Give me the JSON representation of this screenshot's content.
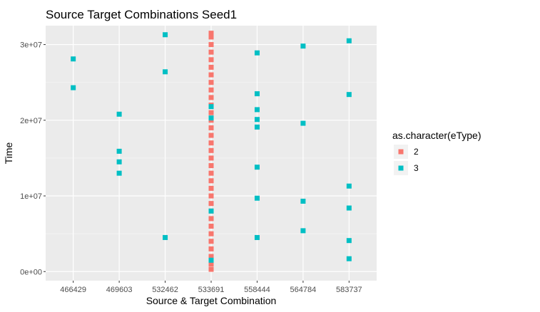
{
  "chart_data": {
    "type": "scatter",
    "title": "Source Target Combinations Seed1",
    "xlabel": "Source & Target Combination",
    "ylabel": "Time",
    "categories": [
      "466429",
      "469603",
      "532462",
      "533691",
      "558444",
      "564784",
      "583737"
    ],
    "ylim": [
      -1200000,
      32500000
    ],
    "y_ticks": [
      {
        "value": 0,
        "label": "0e+00"
      },
      {
        "value": 10000000,
        "label": "1e+07"
      },
      {
        "value": 20000000,
        "label": "2e+07"
      },
      {
        "value": 30000000,
        "label": "3e+07"
      }
    ],
    "grid": true,
    "legend": {
      "title": "as.character(eType)",
      "placement": "right"
    },
    "series": [
      {
        "name": "2",
        "color": "#F8766D",
        "points": [
          {
            "x": "533691",
            "y": 300000
          },
          {
            "x": "533691",
            "y": 1000000
          },
          {
            "x": "533691",
            "y": 2000000
          },
          {
            "x": "533691",
            "y": 3000000
          },
          {
            "x": "533691",
            "y": 4000000
          },
          {
            "x": "533691",
            "y": 5000000
          },
          {
            "x": "533691",
            "y": 6000000
          },
          {
            "x": "533691",
            "y": 7000000
          },
          {
            "x": "533691",
            "y": 8000000
          },
          {
            "x": "533691",
            "y": 9000000
          },
          {
            "x": "533691",
            "y": 10000000
          },
          {
            "x": "533691",
            "y": 11000000
          },
          {
            "x": "533691",
            "y": 12000000
          },
          {
            "x": "533691",
            "y": 13000000
          },
          {
            "x": "533691",
            "y": 14000000
          },
          {
            "x": "533691",
            "y": 15000000
          },
          {
            "x": "533691",
            "y": 16000000
          },
          {
            "x": "533691",
            "y": 17000000
          },
          {
            "x": "533691",
            "y": 18000000
          },
          {
            "x": "533691",
            "y": 19000000
          },
          {
            "x": "533691",
            "y": 20000000
          },
          {
            "x": "533691",
            "y": 21000000
          },
          {
            "x": "533691",
            "y": 22000000
          },
          {
            "x": "533691",
            "y": 23000000
          },
          {
            "x": "533691",
            "y": 24000000
          },
          {
            "x": "533691",
            "y": 25000000
          },
          {
            "x": "533691",
            "y": 26000000
          },
          {
            "x": "533691",
            "y": 27000000
          },
          {
            "x": "533691",
            "y": 28000000
          },
          {
            "x": "533691",
            "y": 29000000
          },
          {
            "x": "533691",
            "y": 30000000
          },
          {
            "x": "533691",
            "y": 31000000
          },
          {
            "x": "533691",
            "y": 31500000
          }
        ]
      },
      {
        "name": "3",
        "color": "#00BFC4",
        "points": [
          {
            "x": "466429",
            "y": 28100000
          },
          {
            "x": "466429",
            "y": 24300000
          },
          {
            "x": "469603",
            "y": 20800000
          },
          {
            "x": "469603",
            "y": 15900000
          },
          {
            "x": "469603",
            "y": 14500000
          },
          {
            "x": "469603",
            "y": 13000000
          },
          {
            "x": "532462",
            "y": 31300000
          },
          {
            "x": "532462",
            "y": 26400000
          },
          {
            "x": "532462",
            "y": 4500000
          },
          {
            "x": "533691",
            "y": 21800000
          },
          {
            "x": "533691",
            "y": 20300000
          },
          {
            "x": "533691",
            "y": 8000000
          },
          {
            "x": "533691",
            "y": 1500000
          },
          {
            "x": "558444",
            "y": 28900000
          },
          {
            "x": "558444",
            "y": 23500000
          },
          {
            "x": "558444",
            "y": 21400000
          },
          {
            "x": "558444",
            "y": 20100000
          },
          {
            "x": "558444",
            "y": 19100000
          },
          {
            "x": "558444",
            "y": 13800000
          },
          {
            "x": "558444",
            "y": 9700000
          },
          {
            "x": "558444",
            "y": 4500000
          },
          {
            "x": "564784",
            "y": 29800000
          },
          {
            "x": "564784",
            "y": 19600000
          },
          {
            "x": "564784",
            "y": 9300000
          },
          {
            "x": "564784",
            "y": 5400000
          },
          {
            "x": "583737",
            "y": 30500000
          },
          {
            "x": "583737",
            "y": 23400000
          },
          {
            "x": "583737",
            "y": 11300000
          },
          {
            "x": "583737",
            "y": 8400000
          },
          {
            "x": "583737",
            "y": 4100000
          },
          {
            "x": "583737",
            "y": 1700000
          }
        ]
      }
    ]
  }
}
